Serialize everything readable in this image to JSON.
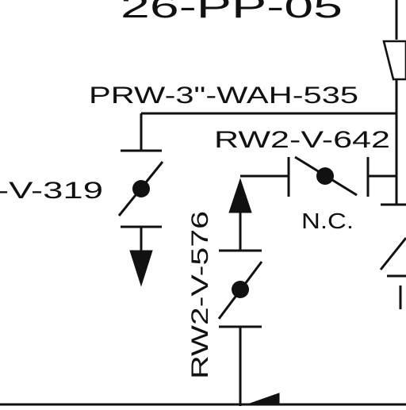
{
  "drawing": {
    "top_label": "26-PP-05",
    "line_label": "PRW-3\"-WAH-535",
    "valve_left_label": "-V-319",
    "valve_top_label": "RW2-V-642",
    "valve_top_state": "N.C.",
    "valve_mid_label": "RW2-V-576"
  },
  "colors": {
    "ink": "#111111",
    "paper": "#ffffff"
  }
}
